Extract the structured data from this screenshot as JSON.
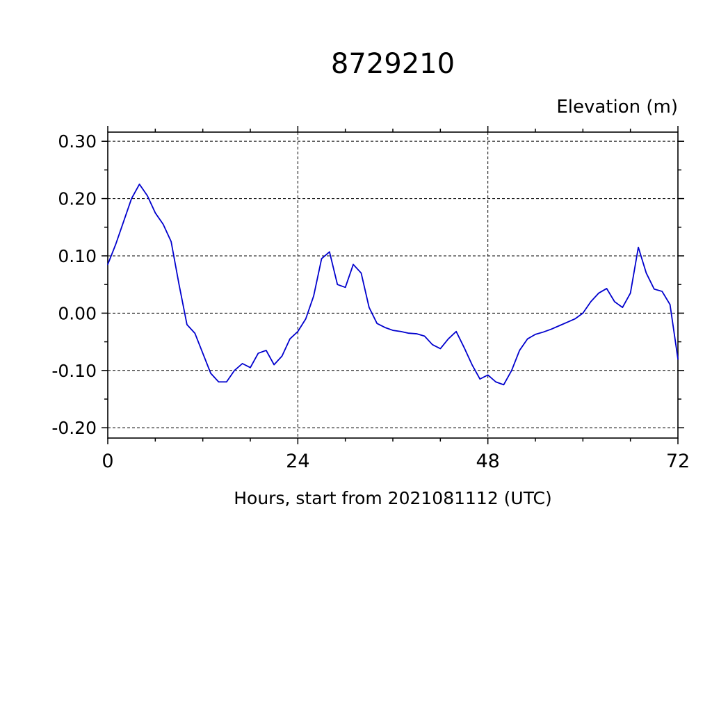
{
  "chart_data": {
    "type": "line",
    "title": "8729210",
    "ylabel": "Elevation (m)",
    "xlabel": "Hours, start from 2021081112 (UTC)",
    "xlim": [
      0,
      72
    ],
    "ylim": [
      -0.218,
      0.316
    ],
    "xticks": [
      0,
      24,
      48,
      72
    ],
    "xtick_labels": [
      "0",
      "24",
      "48",
      "72"
    ],
    "yticks": [
      -0.2,
      -0.1,
      0,
      0.1,
      0.2,
      0.3
    ],
    "ytick_labels": [
      "-0.20",
      "-0.10",
      "0.00",
      "0.10",
      "0.20",
      "0.30"
    ],
    "x_minor_step": 6,
    "y_minor_step": 0.05,
    "grid": true,
    "legend": "none",
    "line_color": "#0000cd",
    "axis_color": "#000000",
    "x": [
      0,
      1,
      2,
      3,
      4,
      5,
      6,
      7,
      8,
      9,
      10,
      11,
      12,
      13,
      14,
      15,
      16,
      17,
      18,
      19,
      20,
      21,
      22,
      23,
      24,
      25,
      26,
      27,
      28,
      29,
      30,
      31,
      32,
      33,
      34,
      35,
      36,
      37,
      38,
      39,
      40,
      41,
      42,
      43,
      44,
      45,
      46,
      47,
      48,
      49,
      50,
      51,
      52,
      53,
      54,
      55,
      56,
      57,
      58,
      59,
      60,
      61,
      62,
      63,
      64,
      65,
      66,
      67,
      68,
      69,
      70,
      71,
      72
    ],
    "values": [
      0.085,
      0.12,
      0.16,
      0.2,
      0.225,
      0.205,
      0.175,
      0.155,
      0.125,
      0.05,
      -0.02,
      -0.035,
      -0.07,
      -0.105,
      -0.12,
      -0.12,
      -0.1,
      -0.088,
      -0.095,
      -0.07,
      -0.065,
      -0.09,
      -0.075,
      -0.045,
      -0.032,
      -0.01,
      0.03,
      0.095,
      0.107,
      0.05,
      0.045,
      0.085,
      0.07,
      0.01,
      -0.018,
      -0.025,
      -0.03,
      -0.032,
      -0.035,
      -0.036,
      -0.04,
      -0.055,
      -0.062,
      -0.045,
      -0.032,
      -0.06,
      -0.09,
      -0.115,
      -0.108,
      -0.12,
      -0.125,
      -0.1,
      -0.065,
      -0.045,
      -0.037,
      -0.033,
      -0.028,
      -0.022,
      -0.016,
      -0.01,
      0.0,
      0.02,
      0.035,
      0.043,
      0.02,
      0.01,
      0.035,
      0.115,
      0.07,
      0.042,
      0.038,
      0.015,
      -0.08
    ]
  }
}
